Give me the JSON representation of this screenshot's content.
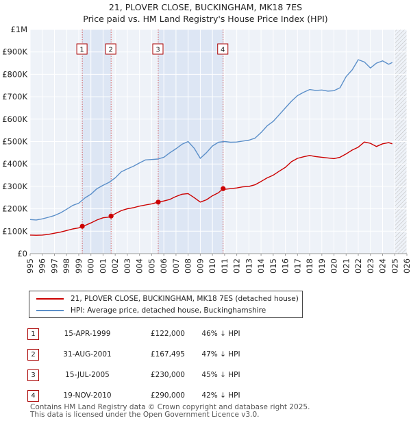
{
  "title_line1": "21, PLOVER CLOSE, BUCKINGHAM, MK18 7ES",
  "title_line2": "Price paid vs. HM Land Registry's House Price Index (HPI)",
  "legend": {
    "property": "21, PLOVER CLOSE, BUCKINGHAM, MK18 7ES (detached house)",
    "hpi": "HPI: Average price, detached house, Buckinghamshire"
  },
  "colors": {
    "property": "#cc0000",
    "hpi": "#5b8fc9",
    "shade": "#dde6f4",
    "marker_border": "#aa0000"
  },
  "transactions": [
    {
      "num": "1",
      "date": "15-APR-1999",
      "price": "£122,000",
      "hpi_diff": "46% ↓ HPI"
    },
    {
      "num": "2",
      "date": "31-AUG-2001",
      "price": "£167,495",
      "hpi_diff": "47% ↓ HPI"
    },
    {
      "num": "3",
      "date": "15-JUL-2005",
      "price": "£230,000",
      "hpi_diff": "45% ↓ HPI"
    },
    {
      "num": "4",
      "date": "19-NOV-2010",
      "price": "£290,000",
      "hpi_diff": "42% ↓ HPI"
    }
  ],
  "footer": {
    "line1": "Contains HM Land Registry data © Crown copyright and database right 2025.",
    "line2": "This data is licensed under the Open Government Licence v3.0."
  },
  "chart_data": {
    "type": "line",
    "title": "21, PLOVER CLOSE, BUCKINGHAM, MK18 7ES — Price paid vs. HM Land Registry's House Price Index (HPI)",
    "xlabel": "",
    "ylabel": "",
    "xlim": [
      1995,
      2026
    ],
    "ylim": [
      0,
      1000000
    ],
    "x_ticks": [
      "1995",
      "1996",
      "1997",
      "1998",
      "1999",
      "2000",
      "2001",
      "2002",
      "2003",
      "2004",
      "2005",
      "2006",
      "2007",
      "2008",
      "2009",
      "2010",
      "2011",
      "2012",
      "2013",
      "2014",
      "2015",
      "2016",
      "2017",
      "2018",
      "2019",
      "2020",
      "2021",
      "2022",
      "2023",
      "2024",
      "2025",
      "2026"
    ],
    "y_ticks": [
      {
        "value": 0,
        "label": "£0"
      },
      {
        "value": 100000,
        "label": "£100K"
      },
      {
        "value": 200000,
        "label": "£200K"
      },
      {
        "value": 300000,
        "label": "£300K"
      },
      {
        "value": 400000,
        "label": "£400K"
      },
      {
        "value": 500000,
        "label": "£500K"
      },
      {
        "value": 600000,
        "label": "£600K"
      },
      {
        "value": 700000,
        "label": "£700K"
      },
      {
        "value": 800000,
        "label": "£800K"
      },
      {
        "value": 900000,
        "label": "£900K"
      },
      {
        "value": 1000000,
        "label": "£1M"
      }
    ],
    "shaded_ranges": [
      [
        1999.29,
        2001.66
      ],
      [
        2005.54,
        2010.88
      ]
    ],
    "hatched_from": 2025.0,
    "sales": [
      {
        "label": "1",
        "x": 1999.29,
        "y": 122000
      },
      {
        "label": "2",
        "x": 2001.66,
        "y": 167495
      },
      {
        "label": "3",
        "x": 2005.54,
        "y": 230000
      },
      {
        "label": "4",
        "x": 2010.88,
        "y": 290000
      }
    ],
    "series": [
      {
        "name": "21, PLOVER CLOSE, BUCKINGHAM, MK18 7ES (detached house)",
        "x": [
          1995.0,
          1995.5,
          1996.0,
          1996.5,
          1997.0,
          1997.5,
          1998.0,
          1998.5,
          1999.0,
          1999.29,
          1999.5,
          2000.0,
          2000.5,
          2001.0,
          2001.5,
          2001.66,
          2002.0,
          2002.5,
          2003.0,
          2003.5,
          2004.0,
          2004.5,
          2005.0,
          2005.54,
          2006.0,
          2006.5,
          2007.0,
          2007.5,
          2008.0,
          2008.5,
          2009.0,
          2009.5,
          2010.0,
          2010.5,
          2010.88,
          2011.0,
          2011.5,
          2012.0,
          2012.5,
          2013.0,
          2013.5,
          2014.0,
          2014.5,
          2015.0,
          2015.5,
          2016.0,
          2016.5,
          2017.0,
          2017.5,
          2018.0,
          2018.5,
          2019.0,
          2019.5,
          2020.0,
          2020.5,
          2021.0,
          2021.5,
          2022.0,
          2022.5,
          2023.0,
          2023.5,
          2024.0,
          2024.5,
          2024.8
        ],
        "values": [
          83000,
          82000,
          83000,
          86000,
          91000,
          96000,
          103000,
          110000,
          115000,
          122000,
          125000,
          137000,
          150000,
          160000,
          163000,
          167495,
          178000,
          192000,
          200000,
          205000,
          212000,
          217000,
          222000,
          230000,
          235000,
          242000,
          255000,
          265000,
          268000,
          250000,
          230000,
          240000,
          258000,
          272000,
          290000,
          287000,
          290000,
          293000,
          298000,
          300000,
          307000,
          322000,
          338000,
          350000,
          368000,
          385000,
          410000,
          425000,
          432000,
          438000,
          433000,
          430000,
          427000,
          424000,
          430000,
          445000,
          462000,
          475000,
          498000,
          492000,
          478000,
          490000,
          495000,
          490000
        ]
      },
      {
        "name": "HPI: Average price, detached house, Buckinghamshire",
        "x": [
          1995.0,
          1995.5,
          1996.0,
          1996.5,
          1997.0,
          1997.5,
          1998.0,
          1998.5,
          1999.0,
          1999.5,
          2000.0,
          2000.5,
          2001.0,
          2001.5,
          2002.0,
          2002.5,
          2003.0,
          2003.5,
          2004.0,
          2004.5,
          2005.0,
          2005.5,
          2006.0,
          2006.5,
          2007.0,
          2007.5,
          2008.0,
          2008.5,
          2009.0,
          2009.5,
          2010.0,
          2010.5,
          2011.0,
          2011.5,
          2012.0,
          2012.5,
          2013.0,
          2013.5,
          2014.0,
          2014.5,
          2015.0,
          2015.5,
          2016.0,
          2016.5,
          2017.0,
          2017.5,
          2018.0,
          2018.5,
          2019.0,
          2019.5,
          2020.0,
          2020.5,
          2021.0,
          2021.5,
          2022.0,
          2022.5,
          2023.0,
          2023.5,
          2024.0,
          2024.5,
          2024.8
        ],
        "values": [
          152000,
          150000,
          155000,
          162000,
          170000,
          182000,
          198000,
          215000,
          225000,
          248000,
          265000,
          290000,
          305000,
          318000,
          338000,
          365000,
          378000,
          390000,
          405000,
          418000,
          420000,
          422000,
          430000,
          450000,
          468000,
          488000,
          500000,
          470000,
          425000,
          450000,
          480000,
          497000,
          500000,
          497000,
          498000,
          502000,
          506000,
          515000,
          540000,
          570000,
          590000,
          620000,
          650000,
          680000,
          705000,
          720000,
          732000,
          728000,
          730000,
          725000,
          727000,
          740000,
          790000,
          820000,
          865000,
          855000,
          828000,
          850000,
          860000,
          845000,
          853000
        ]
      }
    ]
  }
}
